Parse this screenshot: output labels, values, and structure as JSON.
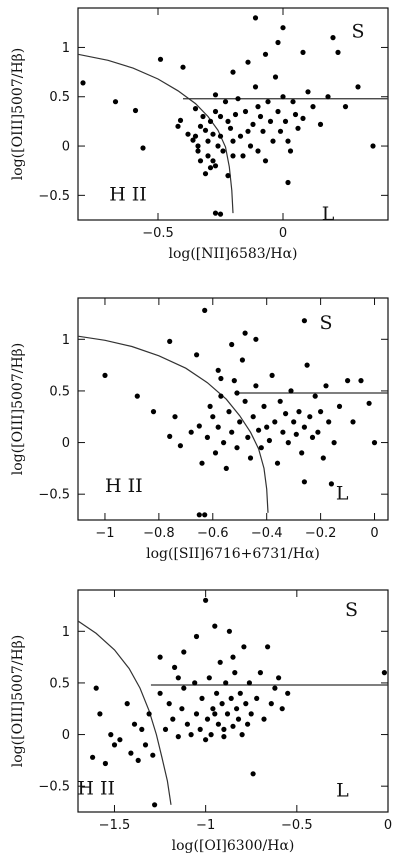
{
  "chart_data": [
    {
      "type": "scatter",
      "xlabel": "log([NII]6583/Hα)",
      "ylabel": "log([OIII]5007/Hβ)",
      "xlim": [
        -0.82,
        0.42
      ],
      "ylim": [
        -0.75,
        1.4
      ],
      "xticks": [
        -0.5,
        0
      ],
      "yticks": [
        -0.5,
        0,
        0.5,
        1
      ],
      "xtick_labels": [
        "−0.5",
        "0"
      ],
      "ytick_labels": [
        "−0.5",
        "0",
        "0.5",
        "1"
      ],
      "region_labels": [
        {
          "text": "H II",
          "x": -0.62,
          "y": -0.55
        },
        {
          "text": "S",
          "x": 0.3,
          "y": 1.1
        },
        {
          "text": "L",
          "x": 0.18,
          "y": -0.75
        }
      ],
      "demarcation_curve": [
        [
          -0.82,
          0.93
        ],
        [
          -0.7,
          0.87
        ],
        [
          -0.6,
          0.79
        ],
        [
          -0.5,
          0.68
        ],
        [
          -0.42,
          0.56
        ],
        [
          -0.35,
          0.43
        ],
        [
          -0.3,
          0.3
        ],
        [
          -0.26,
          0.16
        ],
        [
          -0.23,
          -0.01
        ],
        [
          -0.215,
          -0.21
        ],
        [
          -0.205,
          -0.45
        ],
        [
          -0.2,
          -0.68
        ]
      ],
      "horizontal_line": {
        "y": 0.48,
        "x_from": -0.4,
        "x_to": 0.42
      },
      "points": [
        [
          -0.8,
          0.64
        ],
        [
          -0.67,
          0.45
        ],
        [
          -0.59,
          0.36
        ],
        [
          -0.56,
          -0.02
        ],
        [
          -0.49,
          0.88
        ],
        [
          -0.42,
          0.2
        ],
        [
          -0.41,
          0.26
        ],
        [
          -0.4,
          0.8
        ],
        [
          -0.36,
          0.06
        ],
        [
          -0.35,
          0.1
        ],
        [
          -0.34,
          0.0
        ],
        [
          -0.35,
          0.38
        ],
        [
          -0.33,
          0.2
        ],
        [
          -0.32,
          0.3
        ],
        [
          -0.31,
          0.16
        ],
        [
          -0.3,
          -0.1
        ],
        [
          -0.3,
          0.05
        ],
        [
          -0.29,
          0.25
        ],
        [
          -0.28,
          -0.15
        ],
        [
          -0.28,
          0.12
        ],
        [
          -0.27,
          0.35
        ],
        [
          -0.27,
          -0.2
        ],
        [
          -0.26,
          0.0
        ],
        [
          -0.25,
          0.3
        ],
        [
          -0.25,
          0.1
        ],
        [
          -0.24,
          -0.05
        ],
        [
          -0.23,
          0.45
        ],
        [
          -0.22,
          0.25
        ],
        [
          -0.22,
          -0.3
        ],
        [
          -0.21,
          0.18
        ],
        [
          -0.2,
          -0.1
        ],
        [
          -0.2,
          0.05
        ],
        [
          -0.19,
          0.32
        ],
        [
          -0.18,
          0.48
        ],
        [
          -0.17,
          0.1
        ],
        [
          -0.16,
          -0.1
        ],
        [
          -0.15,
          0.35
        ],
        [
          -0.14,
          0.15
        ],
        [
          -0.13,
          0.0
        ],
        [
          -0.12,
          0.22
        ],
        [
          -0.11,
          0.6
        ],
        [
          -0.1,
          -0.05
        ],
        [
          -0.1,
          0.4
        ],
        [
          -0.09,
          0.3
        ],
        [
          -0.08,
          0.15
        ],
        [
          -0.07,
          -0.15
        ],
        [
          -0.06,
          0.45
        ],
        [
          -0.05,
          0.25
        ],
        [
          -0.04,
          0.05
        ],
        [
          -0.03,
          0.7
        ],
        [
          -0.02,
          0.35
        ],
        [
          -0.01,
          0.15
        ],
        [
          0.0,
          0.5
        ],
        [
          0.01,
          0.25
        ],
        [
          0.02,
          0.05
        ],
        [
          0.03,
          -0.05
        ],
        [
          0.04,
          0.45
        ],
        [
          0.05,
          0.32
        ],
        [
          0.06,
          0.18
        ],
        [
          0.08,
          0.28
        ],
        [
          0.1,
          0.55
        ],
        [
          0.12,
          0.4
        ],
        [
          0.15,
          0.22
        ],
        [
          0.18,
          0.5
        ],
        [
          0.2,
          1.1
        ],
        [
          0.22,
          0.95
        ],
        [
          0.25,
          0.4
        ],
        [
          0.3,
          0.6
        ],
        [
          0.36,
          0.0
        ],
        [
          -0.2,
          0.75
        ],
        [
          -0.14,
          0.85
        ],
        [
          -0.07,
          0.93
        ],
        [
          -0.02,
          1.05
        ],
        [
          0.08,
          0.95
        ],
        [
          -0.11,
          1.3
        ],
        [
          0.0,
          1.2
        ],
        [
          -0.27,
          -0.68
        ],
        [
          -0.25,
          -0.69
        ],
        [
          0.02,
          -0.37
        ],
        [
          -0.31,
          -0.28
        ],
        [
          -0.29,
          -0.22
        ],
        [
          -0.33,
          -0.15
        ],
        [
          -0.34,
          -0.05
        ],
        [
          -0.38,
          0.12
        ],
        [
          -0.27,
          0.52
        ]
      ]
    },
    {
      "type": "scatter",
      "xlabel": "log([SII]6716+6731/Hα)",
      "ylabel": "log([OIII]5007/Hβ)",
      "xlim": [
        -1.1,
        0.05
      ],
      "ylim": [
        -0.75,
        1.4
      ],
      "xticks": [
        -1,
        -0.8,
        -0.6,
        -0.4,
        -0.2,
        0
      ],
      "yticks": [
        -0.5,
        0,
        0.5,
        1
      ],
      "xtick_labels": [
        "−1",
        "−0.8",
        "−0.6",
        "−0.4",
        "−0.2",
        "0"
      ],
      "ytick_labels": [
        "−0.5",
        "0",
        "0.5",
        "1"
      ],
      "region_labels": [
        {
          "text": "H II",
          "x": -0.93,
          "y": -0.48
        },
        {
          "text": "S",
          "x": -0.18,
          "y": 1.1
        },
        {
          "text": "L",
          "x": -0.12,
          "y": -0.55
        }
      ],
      "demarcation_curve": [
        [
          -1.1,
          1.03
        ],
        [
          -1.0,
          0.99
        ],
        [
          -0.9,
          0.93
        ],
        [
          -0.8,
          0.84
        ],
        [
          -0.7,
          0.72
        ],
        [
          -0.62,
          0.58
        ],
        [
          -0.55,
          0.42
        ],
        [
          -0.5,
          0.26
        ],
        [
          -0.46,
          0.1
        ],
        [
          -0.43,
          -0.06
        ],
        [
          -0.41,
          -0.25
        ],
        [
          -0.4,
          -0.45
        ],
        [
          -0.395,
          -0.68
        ]
      ],
      "horizontal_line": {
        "y": 0.48,
        "x_from": -0.52,
        "x_to": 0.05
      },
      "points": [
        [
          -1.0,
          0.65
        ],
        [
          -0.88,
          0.45
        ],
        [
          -0.82,
          0.3
        ],
        [
          -0.76,
          0.98
        ],
        [
          -0.76,
          0.06
        ],
        [
          -0.74,
          0.25
        ],
        [
          -0.72,
          -0.03
        ],
        [
          -0.68,
          0.1
        ],
        [
          -0.66,
          0.85
        ],
        [
          -0.65,
          0.16
        ],
        [
          -0.64,
          -0.2
        ],
        [
          -0.63,
          1.28
        ],
        [
          -0.62,
          0.05
        ],
        [
          -0.61,
          0.35
        ],
        [
          -0.6,
          0.25
        ],
        [
          -0.59,
          -0.1
        ],
        [
          -0.58,
          0.15
        ],
        [
          -0.57,
          0.45
        ],
        [
          -0.56,
          0.0
        ],
        [
          -0.55,
          -0.25
        ],
        [
          -0.54,
          0.3
        ],
        [
          -0.53,
          0.1
        ],
        [
          -0.52,
          0.6
        ],
        [
          -0.51,
          -0.05
        ],
        [
          -0.5,
          0.2
        ],
        [
          -0.49,
          0.8
        ],
        [
          -0.48,
          0.4
        ],
        [
          -0.47,
          0.05
        ],
        [
          -0.46,
          -0.15
        ],
        [
          -0.45,
          0.25
        ],
        [
          -0.44,
          0.55
        ],
        [
          -0.43,
          0.12
        ],
        [
          -0.42,
          -0.05
        ],
        [
          -0.41,
          0.35
        ],
        [
          -0.4,
          0.15
        ],
        [
          -0.39,
          0.02
        ],
        [
          -0.38,
          0.65
        ],
        [
          -0.37,
          0.2
        ],
        [
          -0.36,
          -0.2
        ],
        [
          -0.35,
          0.4
        ],
        [
          -0.34,
          0.1
        ],
        [
          -0.33,
          0.28
        ],
        [
          -0.32,
          0.0
        ],
        [
          -0.31,
          0.5
        ],
        [
          -0.3,
          0.2
        ],
        [
          -0.29,
          0.08
        ],
        [
          -0.28,
          0.3
        ],
        [
          -0.27,
          -0.1
        ],
        [
          -0.26,
          0.15
        ],
        [
          -0.25,
          0.75
        ],
        [
          -0.24,
          0.25
        ],
        [
          -0.23,
          0.05
        ],
        [
          -0.22,
          0.45
        ],
        [
          -0.21,
          0.1
        ],
        [
          -0.2,
          0.3
        ],
        [
          -0.19,
          -0.15
        ],
        [
          -0.18,
          0.55
        ],
        [
          -0.17,
          0.2
        ],
        [
          -0.15,
          0.0
        ],
        [
          -0.13,
          0.35
        ],
        [
          -0.1,
          0.6
        ],
        [
          -0.08,
          0.2
        ],
        [
          -0.05,
          0.6
        ],
        [
          -0.02,
          0.38
        ],
        [
          0.0,
          0.0
        ],
        [
          -0.53,
          0.95
        ],
        [
          -0.48,
          1.06
        ],
        [
          -0.44,
          1.0
        ],
        [
          -0.26,
          1.18
        ],
        [
          -0.65,
          -0.7
        ],
        [
          -0.63,
          -0.7
        ],
        [
          -0.26,
          -0.38
        ],
        [
          -0.16,
          -0.4
        ],
        [
          -0.57,
          0.62
        ],
        [
          -0.51,
          0.48
        ],
        [
          -0.58,
          0.7
        ]
      ]
    },
    {
      "type": "scatter",
      "xlabel": "log([OI]6300/Hα)",
      "ylabel": "log([OIII]5007/Hβ)",
      "xlim": [
        -1.7,
        0.0
      ],
      "ylim": [
        -0.75,
        1.4
      ],
      "xticks": [
        -1.5,
        -1,
        -0.5,
        0
      ],
      "yticks": [
        -0.5,
        0,
        0.5,
        1
      ],
      "xtick_labels": [
        "−1.5",
        "−1",
        "−0.5",
        "0"
      ],
      "ytick_labels": [
        "−0.5",
        "0",
        "0.5",
        "1"
      ],
      "region_labels": [
        {
          "text": "H II",
          "x": -1.6,
          "y": -0.58
        },
        {
          "text": "S",
          "x": -0.2,
          "y": 1.15
        },
        {
          "text": "L",
          "x": -0.25,
          "y": -0.6
        }
      ],
      "demarcation_curve": [
        [
          -1.7,
          1.1
        ],
        [
          -1.6,
          0.98
        ],
        [
          -1.5,
          0.82
        ],
        [
          -1.42,
          0.64
        ],
        [
          -1.36,
          0.45
        ],
        [
          -1.31,
          0.23
        ],
        [
          -1.27,
          0.0
        ],
        [
          -1.24,
          -0.22
        ],
        [
          -1.21,
          -0.45
        ],
        [
          -1.19,
          -0.68
        ]
      ],
      "horizontal_line": {
        "y": 0.48,
        "x_from": -1.3,
        "x_to": 0.0
      },
      "points": [
        [
          -1.62,
          -0.22
        ],
        [
          -1.6,
          0.45
        ],
        [
          -1.58,
          0.2
        ],
        [
          -1.55,
          -0.28
        ],
        [
          -1.52,
          0.0
        ],
        [
          -1.5,
          -0.1
        ],
        [
          -1.47,
          -0.05
        ],
        [
          -1.43,
          0.3
        ],
        [
          -1.41,
          -0.18
        ],
        [
          -1.39,
          0.1
        ],
        [
          -1.37,
          -0.25
        ],
        [
          -1.35,
          0.05
        ],
        [
          -1.33,
          -0.1
        ],
        [
          -1.31,
          0.2
        ],
        [
          -1.29,
          -0.2
        ],
        [
          -1.28,
          -0.68
        ],
        [
          -1.25,
          0.4
        ],
        [
          -1.22,
          0.05
        ],
        [
          -1.2,
          0.3
        ],
        [
          -1.18,
          0.15
        ],
        [
          -1.17,
          0.65
        ],
        [
          -1.15,
          -0.02
        ],
        [
          -1.13,
          0.25
        ],
        [
          -1.12,
          0.45
        ],
        [
          -1.1,
          0.1
        ],
        [
          -1.08,
          0.0
        ],
        [
          -1.06,
          0.5
        ],
        [
          -1.05,
          0.2
        ],
        [
          -1.03,
          0.05
        ],
        [
          -1.02,
          0.35
        ],
        [
          -1.0,
          1.3
        ],
        [
          -0.99,
          0.15
        ],
        [
          -0.98,
          0.55
        ],
        [
          -0.97,
          0.0
        ],
        [
          -0.96,
          0.25
        ],
        [
          -0.95,
          1.05
        ],
        [
          -0.94,
          0.4
        ],
        [
          -0.93,
          0.1
        ],
        [
          -0.92,
          0.7
        ],
        [
          -0.91,
          0.3
        ],
        [
          -0.9,
          0.05
        ],
        [
          -0.89,
          0.5
        ],
        [
          -0.88,
          0.2
        ],
        [
          -0.87,
          1.0
        ],
        [
          -0.86,
          0.35
        ],
        [
          -0.85,
          0.08
        ],
        [
          -0.84,
          0.6
        ],
        [
          -0.83,
          0.25
        ],
        [
          -0.82,
          0.15
        ],
        [
          -0.81,
          0.4
        ],
        [
          -0.8,
          0.0
        ],
        [
          -0.79,
          0.85
        ],
        [
          -0.78,
          0.3
        ],
        [
          -0.77,
          0.1
        ],
        [
          -0.76,
          0.5
        ],
        [
          -0.75,
          0.2
        ],
        [
          -0.74,
          -0.38
        ],
        [
          -0.72,
          0.35
        ],
        [
          -0.7,
          0.6
        ],
        [
          -0.68,
          0.15
        ],
        [
          -0.66,
          0.85
        ],
        [
          -0.64,
          0.3
        ],
        [
          -0.62,
          0.45
        ],
        [
          -0.6,
          0.55
        ],
        [
          -0.58,
          0.25
        ],
        [
          -0.55,
          0.4
        ],
        [
          -0.02,
          0.6
        ],
        [
          -1.12,
          0.8
        ],
        [
          -1.05,
          0.95
        ],
        [
          -0.85,
          0.75
        ],
        [
          -1.25,
          0.75
        ],
        [
          -1.15,
          0.55
        ],
        [
          -0.95,
          0.2
        ],
        [
          -1.0,
          -0.05
        ],
        [
          -0.9,
          -0.02
        ]
      ]
    }
  ]
}
